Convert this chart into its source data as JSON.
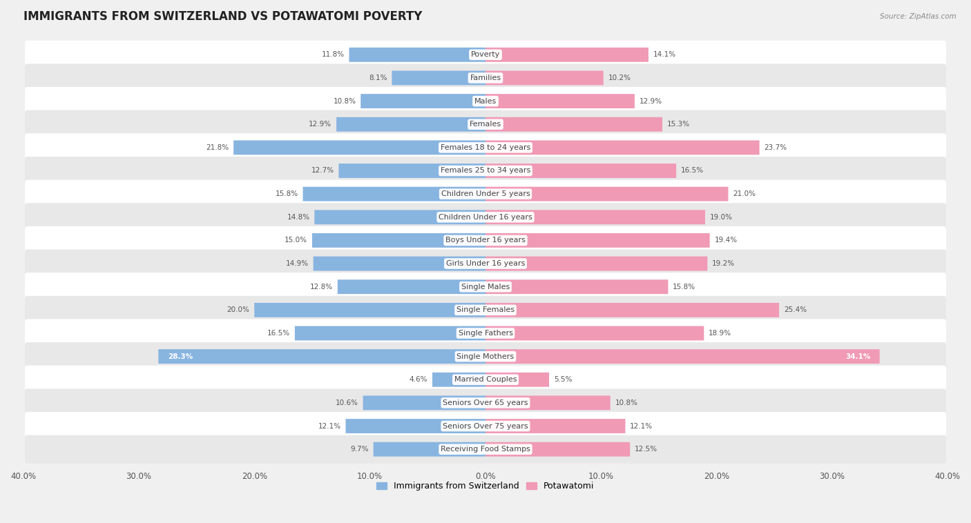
{
  "title": "IMMIGRANTS FROM SWITZERLAND VS POTAWATOMI POVERTY",
  "source": "Source: ZipAtlas.com",
  "categories": [
    "Poverty",
    "Families",
    "Males",
    "Females",
    "Females 18 to 24 years",
    "Females 25 to 34 years",
    "Children Under 5 years",
    "Children Under 16 years",
    "Boys Under 16 years",
    "Girls Under 16 years",
    "Single Males",
    "Single Females",
    "Single Fathers",
    "Single Mothers",
    "Married Couples",
    "Seniors Over 65 years",
    "Seniors Over 75 years",
    "Receiving Food Stamps"
  ],
  "switzerland_values": [
    11.8,
    8.1,
    10.8,
    12.9,
    21.8,
    12.7,
    15.8,
    14.8,
    15.0,
    14.9,
    12.8,
    20.0,
    16.5,
    28.3,
    4.6,
    10.6,
    12.1,
    9.7
  ],
  "potawatomi_values": [
    14.1,
    10.2,
    12.9,
    15.3,
    23.7,
    16.5,
    21.0,
    19.0,
    19.4,
    19.2,
    15.8,
    25.4,
    18.9,
    34.1,
    5.5,
    10.8,
    12.1,
    12.5
  ],
  "switzerland_color": "#88b4e0",
  "potawatomi_color": "#f09ab5",
  "switzerland_label": "Immigrants from Switzerland",
  "potawatomi_label": "Potawatomi",
  "axis_max": 40.0,
  "background_color": "#f0f0f0",
  "row_color_even": "#ffffff",
  "row_color_odd": "#e8e8e8",
  "title_fontsize": 12,
  "label_fontsize": 8.0,
  "value_fontsize": 7.5
}
